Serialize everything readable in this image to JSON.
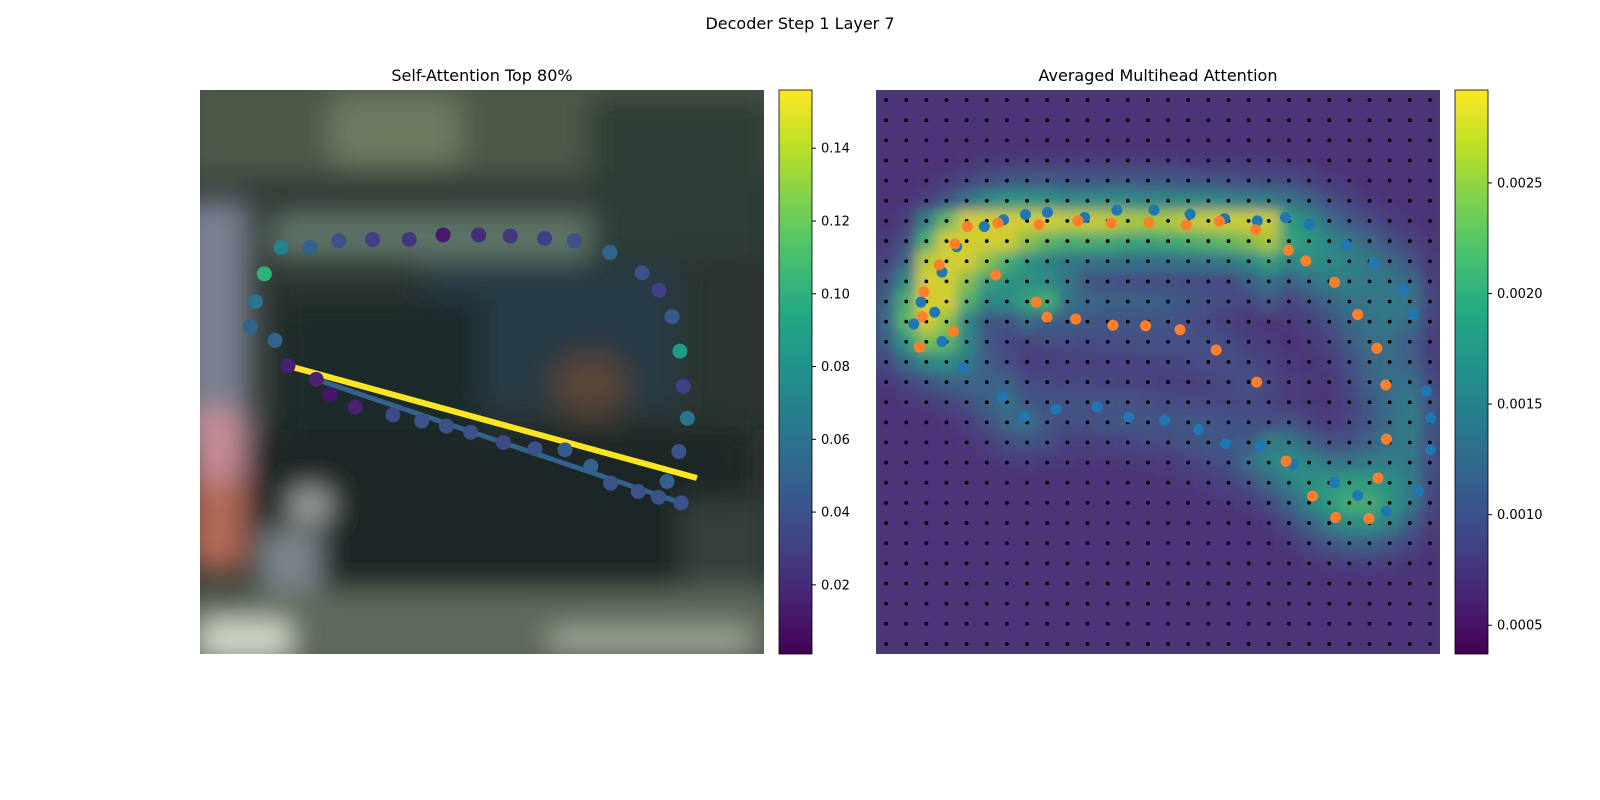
{
  "figure": {
    "suptitle": "Decoder Step 1 Layer 7"
  },
  "chart_data": [
    {
      "type": "scatter",
      "title": "Self-Attention Top 80%",
      "panel": "left",
      "background": "blurred photograph of a street scene",
      "colormap": "viridis",
      "colorbar": {
        "range": [
          0.001,
          0.156
        ],
        "ticks": [
          0.02,
          0.04,
          0.06,
          0.08,
          0.1,
          0.12,
          0.14
        ],
        "tick_labels": [
          "0.02",
          "0.04",
          "0.06",
          "0.08",
          "0.10",
          "0.12",
          "0.14"
        ]
      },
      "image_extent": [
        0,
        1,
        0,
        1
      ],
      "points": [
        {
          "x": 0.195,
          "y": 0.721,
          "v": 0.05
        },
        {
          "x": 0.246,
          "y": 0.733,
          "v": 0.04
        },
        {
          "x": 0.306,
          "y": 0.735,
          "v": 0.03
        },
        {
          "x": 0.371,
          "y": 0.735,
          "v": 0.025
        },
        {
          "x": 0.431,
          "y": 0.743,
          "v": 0.012
        },
        {
          "x": 0.494,
          "y": 0.743,
          "v": 0.02
        },
        {
          "x": 0.55,
          "y": 0.741,
          "v": 0.025
        },
        {
          "x": 0.611,
          "y": 0.737,
          "v": 0.03
        },
        {
          "x": 0.664,
          "y": 0.733,
          "v": 0.04
        },
        {
          "x": 0.727,
          "y": 0.712,
          "v": 0.05
        },
        {
          "x": 0.784,
          "y": 0.676,
          "v": 0.04
        },
        {
          "x": 0.814,
          "y": 0.645,
          "v": 0.03
        },
        {
          "x": 0.837,
          "y": 0.598,
          "v": 0.045
        },
        {
          "x": 0.851,
          "y": 0.537,
          "v": 0.085
        },
        {
          "x": 0.857,
          "y": 0.475,
          "v": 0.03
        },
        {
          "x": 0.864,
          "y": 0.418,
          "v": 0.06
        },
        {
          "x": 0.849,
          "y": 0.359,
          "v": 0.04
        },
        {
          "x": 0.828,
          "y": 0.306,
          "v": 0.05
        },
        {
          "x": 0.144,
          "y": 0.721,
          "v": 0.07
        },
        {
          "x": 0.114,
          "y": 0.674,
          "v": 0.1
        },
        {
          "x": 0.098,
          "y": 0.625,
          "v": 0.06
        },
        {
          "x": 0.089,
          "y": 0.58,
          "v": 0.05
        },
        {
          "x": 0.133,
          "y": 0.556,
          "v": 0.05
        },
        {
          "x": 0.156,
          "y": 0.511,
          "v": 0.015
        },
        {
          "x": 0.206,
          "y": 0.487,
          "v": 0.015
        },
        {
          "x": 0.23,
          "y": 0.46,
          "v": 0.01
        },
        {
          "x": 0.275,
          "y": 0.438,
          "v": 0.015
        },
        {
          "x": 0.342,
          "y": 0.424,
          "v": 0.035
        },
        {
          "x": 0.393,
          "y": 0.413,
          "v": 0.04
        },
        {
          "x": 0.437,
          "y": 0.404,
          "v": 0.04
        },
        {
          "x": 0.48,
          "y": 0.393,
          "v": 0.04
        },
        {
          "x": 0.538,
          "y": 0.375,
          "v": 0.035
        },
        {
          "x": 0.594,
          "y": 0.364,
          "v": 0.04
        },
        {
          "x": 0.647,
          "y": 0.362,
          "v": 0.045
        },
        {
          "x": 0.693,
          "y": 0.333,
          "v": 0.05
        },
        {
          "x": 0.728,
          "y": 0.303,
          "v": 0.04
        },
        {
          "x": 0.777,
          "y": 0.288,
          "v": 0.04
        },
        {
          "x": 0.813,
          "y": 0.278,
          "v": 0.04
        },
        {
          "x": 0.853,
          "y": 0.268,
          "v": 0.04
        }
      ],
      "lines": [
        {
          "x": [
            0.156,
            0.881
          ],
          "y": [
            0.511,
            0.312
          ],
          "v": 0.156
        },
        {
          "x": [
            0.206,
            0.853
          ],
          "y": [
            0.487,
            0.268
          ],
          "v": 0.05
        }
      ]
    },
    {
      "type": "heatmap",
      "title": "Averaged Multihead Attention",
      "panel": "right",
      "colormap": "viridis",
      "colorbar": {
        "range": [
          0.00037,
          0.00292
        ],
        "ticks": [
          0.0005,
          0.001,
          0.0015,
          0.002,
          0.0025
        ],
        "tick_labels": [
          "0.0005",
          "0.0010",
          "0.0015",
          "0.0020",
          "0.0025"
        ]
      },
      "grid_size": 28,
      "series": [
        {
          "color": "#1f77b4",
          "x": [
            0.067,
            0.08,
            0.117,
            0.143,
            0.192,
            0.226,
            0.265,
            0.304,
            0.37,
            0.427,
            0.493,
            0.557,
            0.618,
            0.676,
            0.726,
            0.768,
            0.834,
            0.883,
            0.935,
            0.953,
            0.976,
            0.983,
            0.983,
            0.962,
            0.905,
            0.854,
            0.813,
            0.74,
            0.681,
            0.62,
            0.572,
            0.512,
            0.448,
            0.392,
            0.319,
            0.263,
            0.224,
            0.155,
            0.117,
            0.104
          ],
          "y": [
            0.585,
            0.624,
            0.677,
            0.722,
            0.758,
            0.77,
            0.779,
            0.783,
            0.774,
            0.787,
            0.787,
            0.78,
            0.772,
            0.768,
            0.774,
            0.761,
            0.725,
            0.694,
            0.646,
            0.602,
            0.466,
            0.418,
            0.362,
            0.289,
            0.253,
            0.281,
            0.304,
            0.336,
            0.369,
            0.373,
            0.398,
            0.414,
            0.42,
            0.438,
            0.434,
            0.421,
            0.455,
            0.508,
            0.554,
            0.606
          ]
        },
        {
          "color": "#ff7f2a",
          "x": [
            0.077,
            0.085,
            0.112,
            0.14,
            0.162,
            0.216,
            0.289,
            0.358,
            0.417,
            0.484,
            0.55,
            0.609,
            0.673,
            0.731,
            0.762,
            0.813,
            0.854,
            0.888,
            0.904,
            0.905,
            0.89,
            0.874,
            0.815,
            0.774,
            0.727,
            0.675,
            0.603,
            0.539,
            0.478,
            0.42,
            0.354,
            0.303,
            0.284,
            0.212,
            0.137,
            0.082
          ],
          "y": [
            0.544,
            0.642,
            0.69,
            0.727,
            0.758,
            0.764,
            0.761,
            0.768,
            0.764,
            0.765,
            0.761,
            0.767,
            0.752,
            0.716,
            0.697,
            0.659,
            0.602,
            0.542,
            0.477,
            0.381,
            0.312,
            0.24,
            0.242,
            0.28,
            0.342,
            0.482,
            0.539,
            0.575,
            0.582,
            0.583,
            0.594,
            0.597,
            0.624,
            0.672,
            0.572,
            0.598
          ]
        }
      ]
    }
  ]
}
